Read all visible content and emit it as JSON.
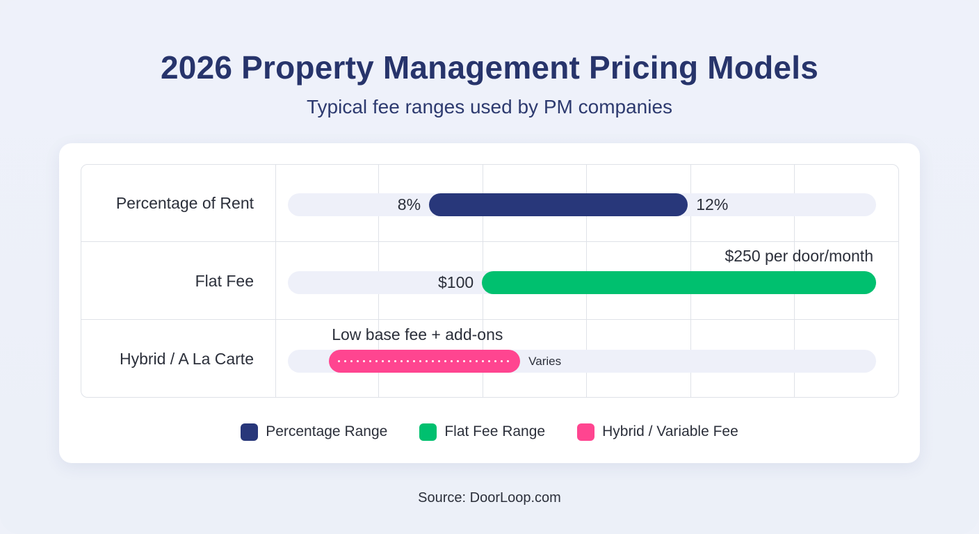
{
  "title": "2026 Property Management Pricing Models",
  "subtitle": "Typical fee ranges used by PM companies",
  "source": "Source: DoorLoop.com",
  "colors": {
    "percentage": "#28377a",
    "flat": "#00c06f",
    "hybrid": "#ff4590",
    "track": "#eef0f9"
  },
  "chart_data": {
    "type": "bar",
    "subtype": "range-bar",
    "title": "2026 Property Management Pricing Models",
    "subtitle": "Typical fee ranges used by PM companies",
    "categories": [
      "Percentage of Rent",
      "Flat Fee",
      "Hybrid / A La Carte"
    ],
    "grid": true,
    "legend_position": "bottom",
    "rows": [
      {
        "category": "Percentage of Rent",
        "series": "Percentage Range",
        "start_fraction": 0.24,
        "end_fraction": 0.68,
        "start_label": "8%",
        "end_label": "12%",
        "low": 8,
        "high": 12,
        "unit": "%"
      },
      {
        "category": "Flat Fee",
        "series": "Flat Fee Range",
        "start_fraction": 0.33,
        "end_fraction": 1.0,
        "start_label": "$100",
        "end_label": "$250 per door/month",
        "low": 100,
        "high": 250,
        "unit": "$ per door/month"
      },
      {
        "category": "Hybrid / A La Carte",
        "series": "Hybrid / Variable Fee",
        "start_fraction": 0.07,
        "end_fraction": 0.395,
        "top_label": "Low base fee + add-ons",
        "end_label": "Varies",
        "pattern": "dotted"
      }
    ],
    "legend": [
      {
        "label": "Percentage Range",
        "color": "#28377a"
      },
      {
        "label": "Flat Fee Range",
        "color": "#00c06f"
      },
      {
        "label": "Hybrid / Variable Fee",
        "color": "#ff4590"
      }
    ]
  }
}
